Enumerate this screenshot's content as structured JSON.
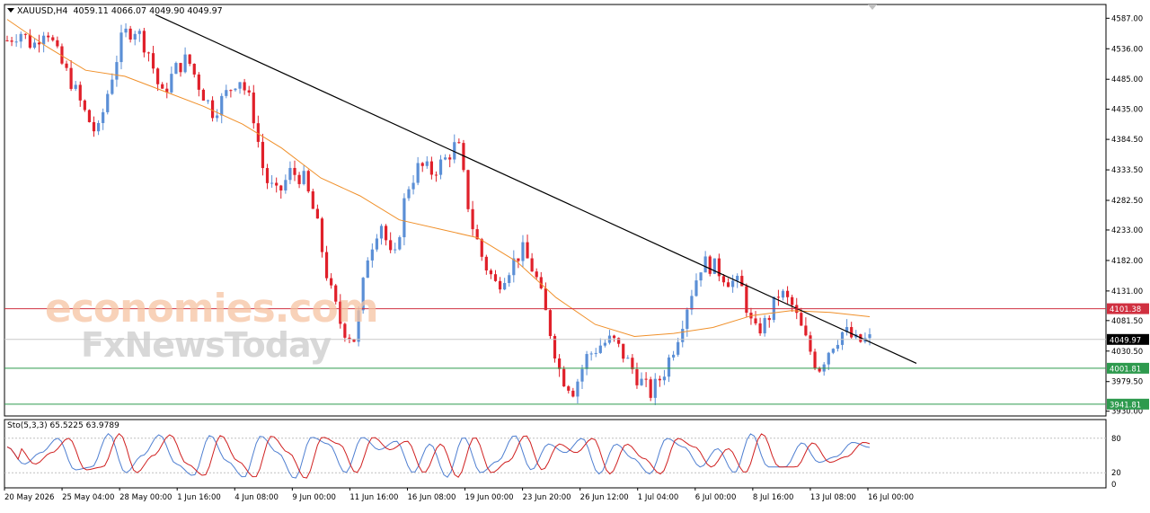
{
  "header": {
    "symbol": "XAUUSD,H4",
    "ohlc": "4059.11 4066.07 4049.90 4049.97"
  },
  "stochastic": {
    "label": "Sto(5,3,3) 65.5225 63.9789",
    "levels": [
      80,
      20,
      0
    ],
    "level_labels": [
      "80",
      "20",
      "0"
    ]
  },
  "watermark": {
    "line1": "economies.com",
    "line2": "FxNewsToday"
  },
  "colors": {
    "bull_candle": "#5b8fd6",
    "bear_candle": "#e0202a",
    "ma_line": "#f0902a",
    "trendline": "#000000",
    "resistance": "#d03040",
    "support": "#2e9a4e",
    "current_price": "#000000",
    "stoch_main": "#4f7fd1",
    "stoch_signal": "#d02020"
  },
  "chart_data": {
    "type": "candlestick",
    "symbol": "XAUUSD",
    "timeframe": "H4",
    "y_ticks": [
      4587.0,
      4536.0,
      4485.0,
      4435.0,
      4384.5,
      4333.5,
      4282.5,
      4233.0,
      4182.0,
      4131.0,
      4081.5,
      4030.5,
      3979.5,
      3930.0
    ],
    "y_tick_labels": [
      "4587.00",
      "4536.00",
      "4485.00",
      "4435.00",
      "4384.50",
      "4333.50",
      "4282.50",
      "4233.00",
      "4182.00",
      "4131.00",
      "4081.50",
      "4030.50",
      "3979.50",
      "3930.00"
    ],
    "ylim": [
      3922,
      4610
    ],
    "x_tick_labels": [
      "20 May 2026",
      "25 May 04:00",
      "28 May 00:00",
      "1 Jun 16:00",
      "4 Jun 08:00",
      "9 Jun 00:00",
      "11 Jun 16:00",
      "16 Jun 08:00",
      "19 Jun 00:00",
      "23 Jun 20:00",
      "26 Jun 12:00",
      "1 Jul 04:00",
      "6 Jul 00:00",
      "8 Jul 16:00",
      "13 Jul 08:00",
      "16 Jul 00:00"
    ],
    "horizontal_levels": [
      {
        "value": 4101.38,
        "label": "4101.38",
        "kind": "resistance"
      },
      {
        "value": 4049.97,
        "label": "4049.97",
        "kind": "current"
      },
      {
        "value": 4001.81,
        "label": "4001.81",
        "kind": "support"
      },
      {
        "value": 3941.81,
        "label": "3941.81",
        "kind": "support"
      }
    ],
    "close_path": [
      4550,
      4565,
      4540,
      4575,
      4520,
      4480,
      4430,
      4390,
      4480,
      4560,
      4570,
      4530,
      4455,
      4500,
      4520,
      4470,
      4430,
      4460,
      4490,
      4440,
      4320,
      4290,
      4330,
      4320,
      4250,
      4140,
      4070,
      4050,
      4190,
      4250,
      4170,
      4300,
      4340,
      4330,
      4350,
      4380,
      4250,
      4180,
      4140,
      4170,
      4200,
      4160,
      4080,
      3990,
      3965,
      4020,
      4040,
      4050,
      4020,
      3985,
      3960,
      3995,
      4050,
      4120,
      4180,
      4170,
      4150,
      4140,
      4060,
      4080,
      4130,
      4105,
      4050,
      4000,
      4040,
      4065,
      4045,
      4050
    ],
    "ma_path": [
      4585,
      4540,
      4500,
      4490,
      4465,
      4440,
      4410,
      4370,
      4320,
      4290,
      4250,
      4235,
      4220,
      4180,
      4120,
      4075,
      4055,
      4060,
      4070,
      4090,
      4098,
      4095,
      4088
    ],
    "trendline": {
      "from": [
        "28 May 00:00",
        4593
      ],
      "to": [
        "16 Jul 00:00",
        4045
      ]
    },
    "stoch_path": [
      65,
      35,
      55,
      80,
      25,
      30,
      88,
      20,
      50,
      86,
      35,
      15,
      85,
      40,
      12,
      84,
      55,
      10,
      82,
      70,
      20,
      82,
      60,
      75,
      20,
      70,
      12,
      82,
      20,
      40,
      85,
      25,
      70,
      55,
      80,
      18,
      70,
      45,
      18,
      80,
      65,
      30,
      62,
      20,
      88,
      30,
      30,
      72,
      38,
      48,
      73,
      64
    ]
  }
}
